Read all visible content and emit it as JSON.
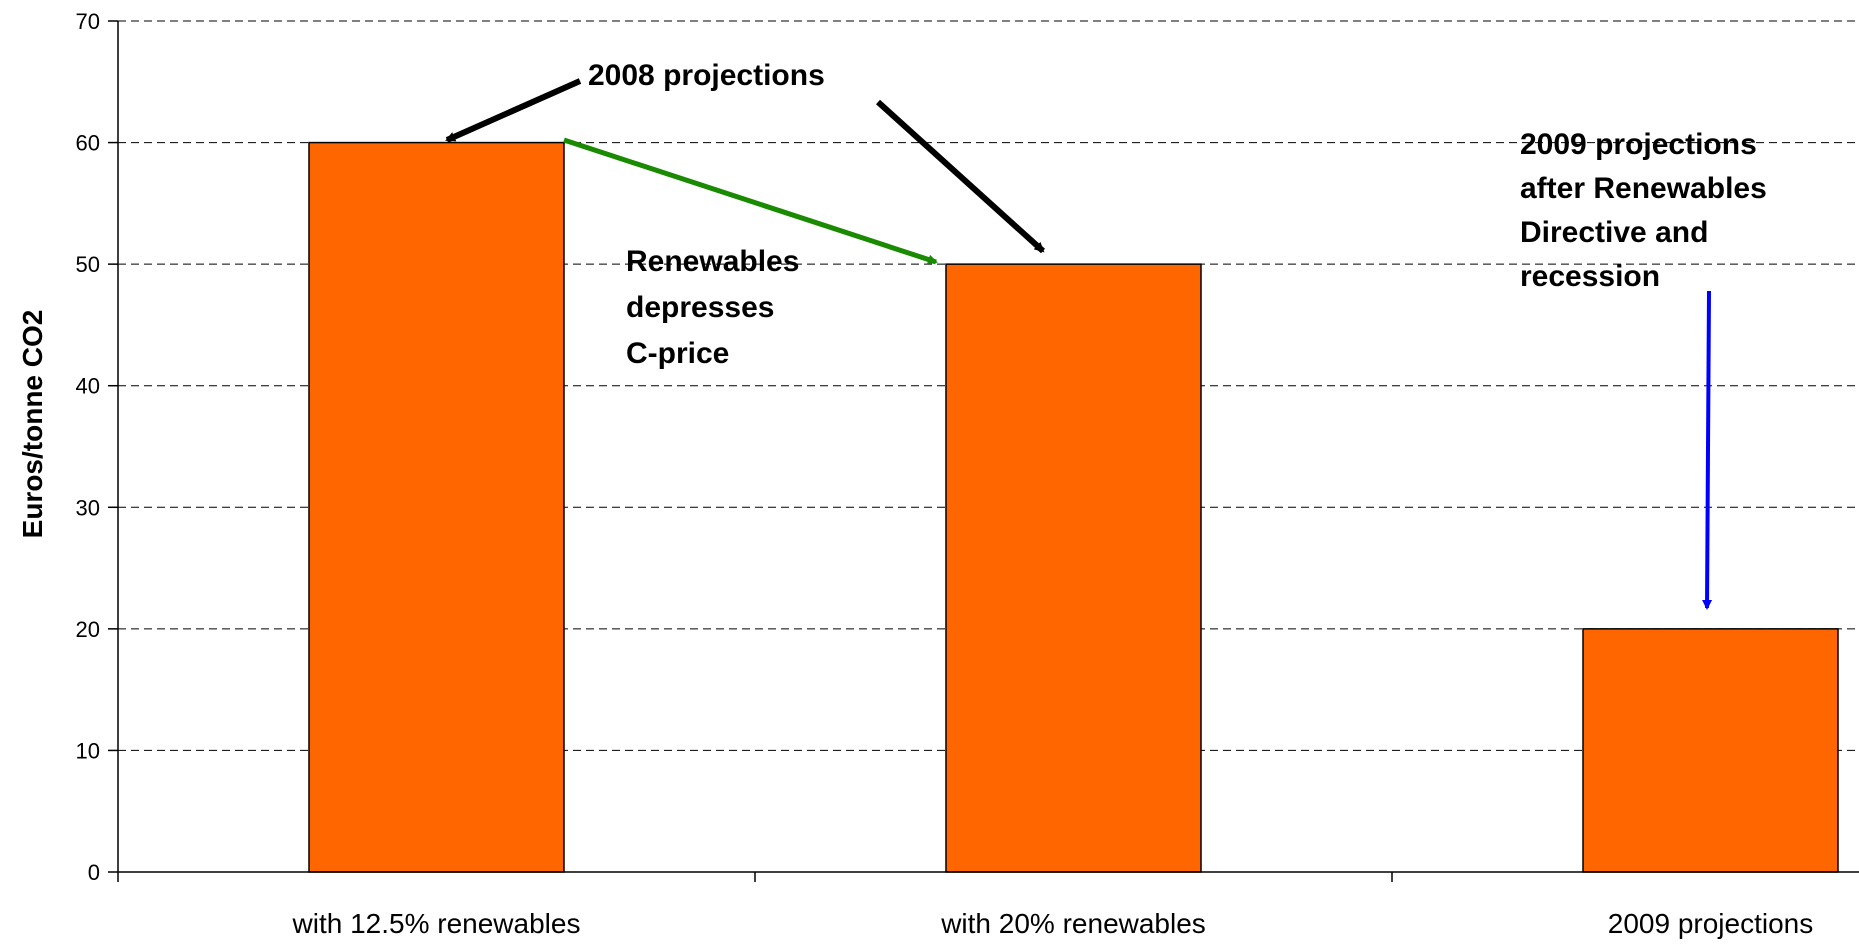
{
  "chart_data": {
    "type": "bar",
    "title": "",
    "xlabel": "",
    "ylabel": "Euros/tonne CO2",
    "ylim": [
      0,
      70
    ],
    "yticks": [
      0,
      10,
      20,
      30,
      40,
      50,
      60,
      70
    ],
    "grid": "horizontal dashed",
    "categories": [
      "with 12.5% renewables",
      "with 20% renewables",
      "2009 projections"
    ],
    "values": [
      60,
      50,
      20
    ],
    "bar_color": "#FF6600",
    "annotations": [
      {
        "id": "annot-2008",
        "lines": [
          "2008 projections"
        ],
        "arrow_color": "#000000"
      },
      {
        "id": "annot-renewables",
        "lines": [
          "Renewables",
          "depresses",
          "C-price"
        ],
        "arrow_color": "#1A8A00"
      },
      {
        "id": "annot-2009",
        "lines": [
          "2009 projections",
          "after Renewables",
          "Directive and",
          "recession"
        ],
        "arrow_color": "#0000FF"
      }
    ]
  }
}
